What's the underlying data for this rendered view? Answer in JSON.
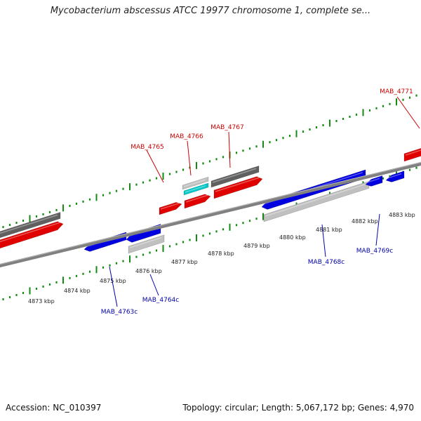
{
  "title": "Mycobacterium abscessus ATCC 19977 chromosome 1, complete se...",
  "footer": {
    "accession": "Accession: NC_010397",
    "stats": "Topology: circular; Length: 5,067,172 bp; Genes: 4,970"
  },
  "colors": {
    "forward_cds": "#e00000",
    "reverse_cds": "#0000e0",
    "forward_label": "#cc0000",
    "reverse_label": "#0000aa",
    "gene_gray": "#606060",
    "light_gray": "#c0c0c0",
    "cyan": "#00c8c8",
    "backbone": "#808080",
    "ticks": "#138a13"
  },
  "tick_labels": [
    "4873 kbp",
    "4874 kbp",
    "4875 kbp",
    "4876 kbp",
    "4877 kbp",
    "4878 kbp",
    "4879 kbp",
    "4880 kbp",
    "4881 kbp",
    "4882 kbp",
    "4883 kbp"
  ],
  "gene_labels": {
    "forward": [
      "MAB_4765",
      "MAB_4766",
      "MAB_4767",
      "MAB_4771"
    ],
    "reverse": [
      "MAB_4763c",
      "MAB_4764c",
      "MAB_4768c",
      "MAB_4769c"
    ]
  }
}
